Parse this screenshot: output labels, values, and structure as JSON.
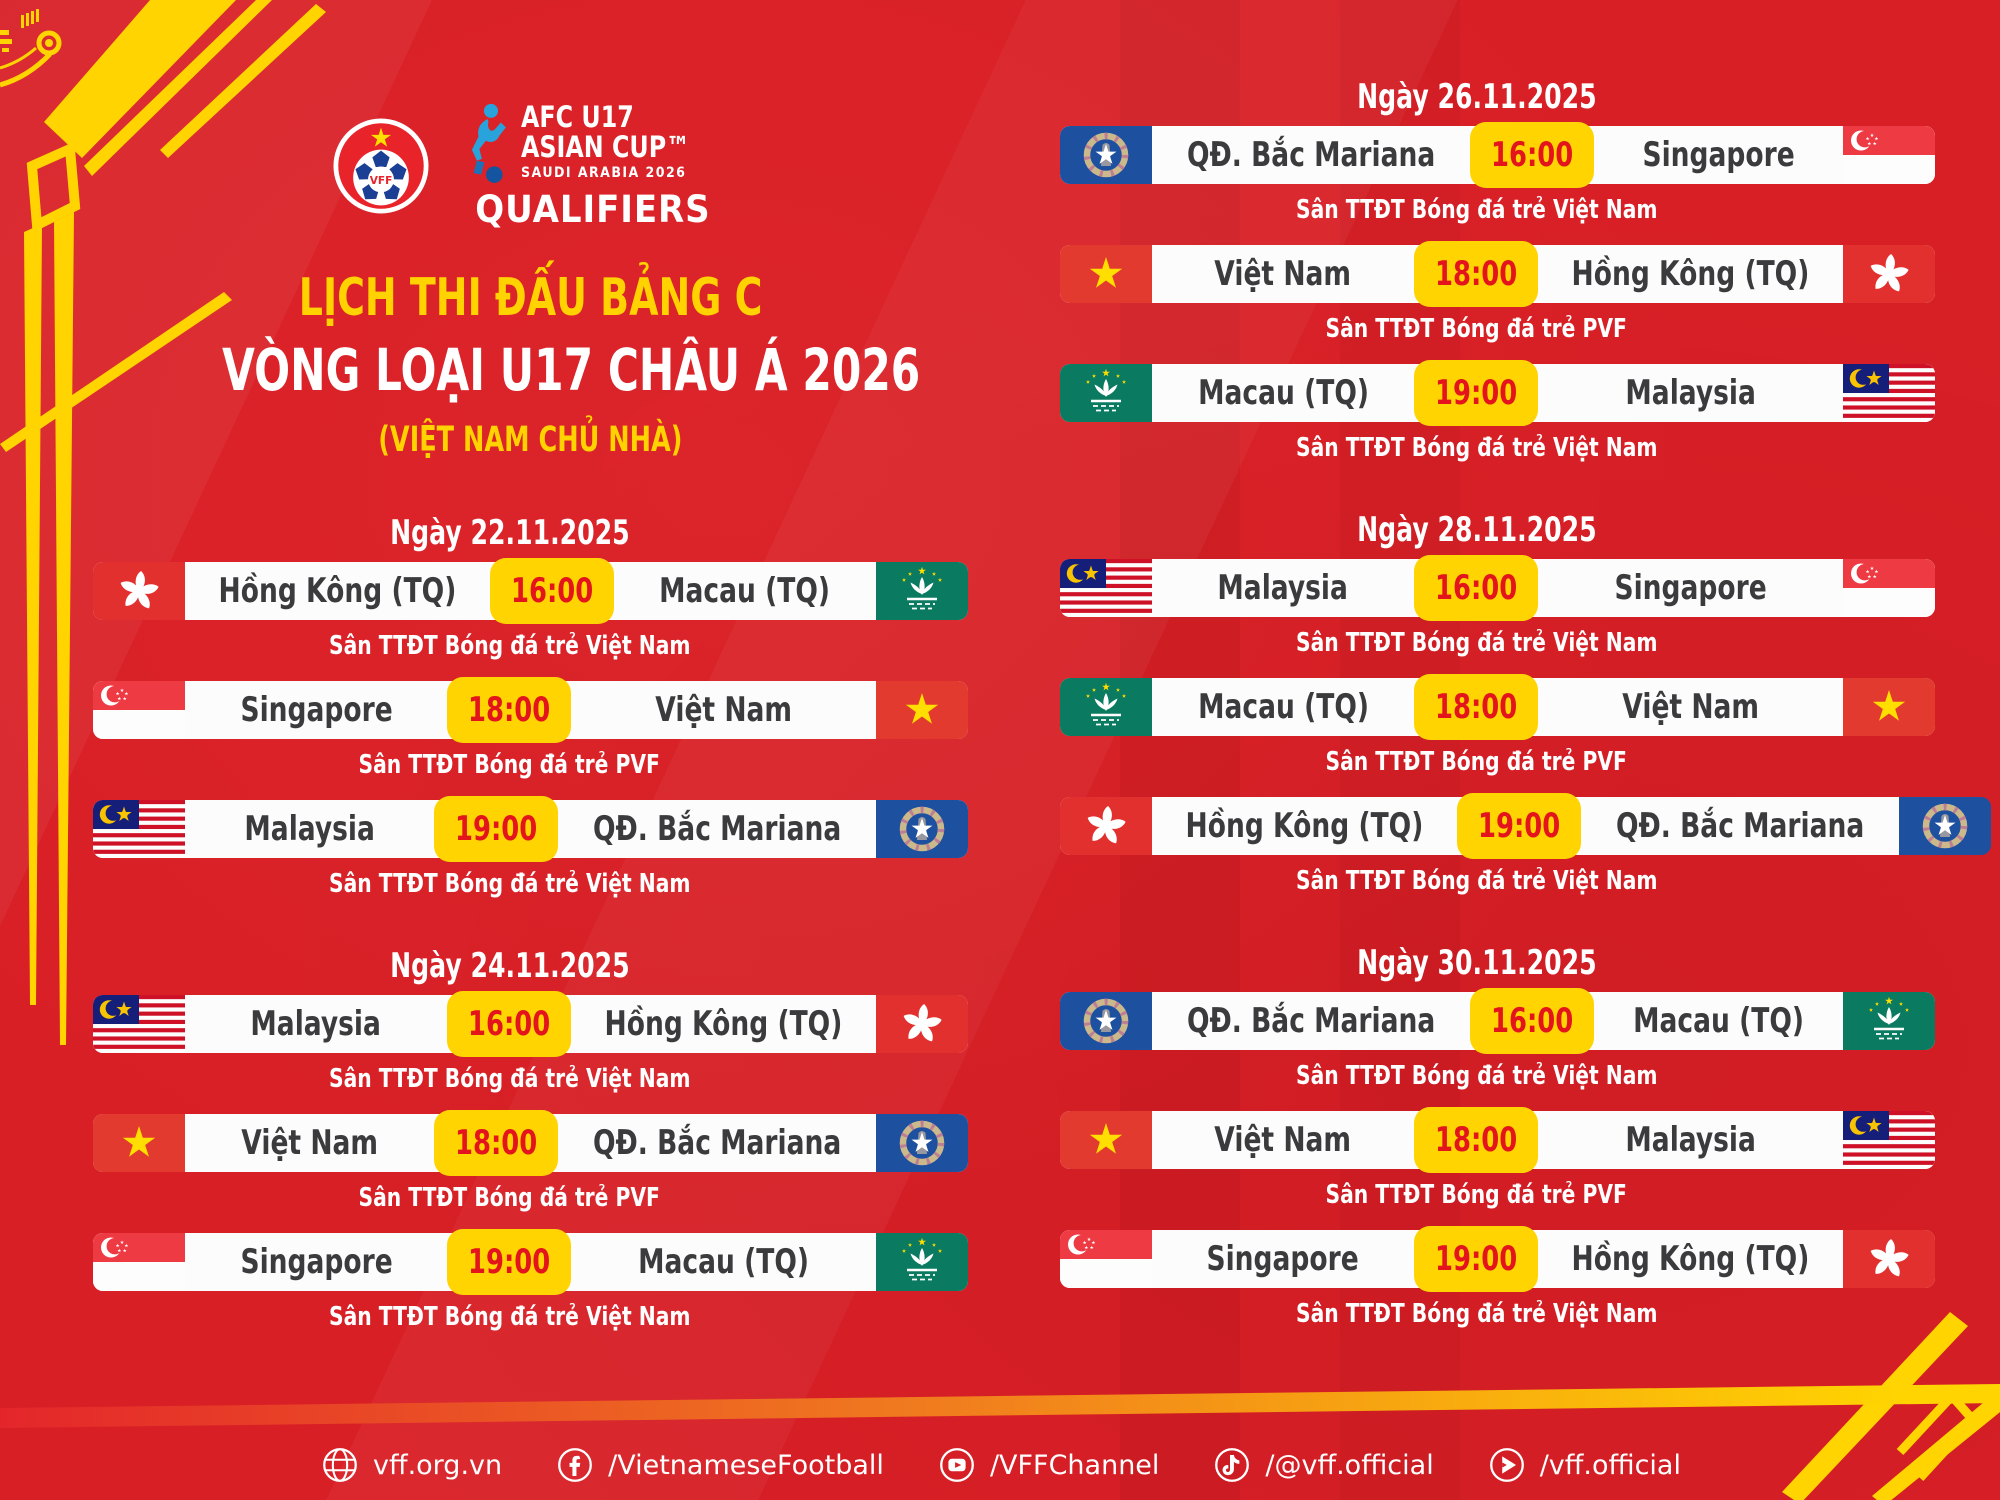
{
  "header": {
    "vff_logo_text": "VFF",
    "afc_logo": {
      "line1": "AFC U17",
      "line2": "ASIAN CUP™",
      "line3": "SAUDI ARABIA 2026",
      "line4": "QUALIFIERS"
    },
    "title": {
      "line1": "LỊCH THI ĐẤU BẢNG C",
      "line2": "VÒNG LOẠI U17 CHÂU Á 2026",
      "line3": "(VIỆT NAM CHỦ NHÀ)"
    }
  },
  "colors": {
    "background_red": "#D81F26",
    "accent_yellow": "#FFD401",
    "title_yellow": "#FFD200",
    "time_red": "#E3141C",
    "team_text": "#3B3B3D",
    "white": "#FFFFFF"
  },
  "schedule": [
    {
      "date": "Ngày 22.11.2025",
      "column": "left",
      "matches": [
        {
          "home": "Hồng Kông (TQ)",
          "home_flag": "hongkong",
          "time": "16:00",
          "away": "Macau (TQ)",
          "away_flag": "macau",
          "venue": "Sân TTĐT Bóng đá trẻ Việt Nam"
        },
        {
          "home": "Singapore",
          "home_flag": "singapore",
          "time": "18:00",
          "away": "Việt Nam",
          "away_flag": "vietnam",
          "venue": "Sân TTĐT Bóng đá trẻ PVF"
        },
        {
          "home": "Malaysia",
          "home_flag": "malaysia",
          "time": "19:00",
          "away": "QĐ. Bắc Mariana",
          "away_flag": "nmariana",
          "venue": "Sân TTĐT Bóng đá trẻ Việt Nam"
        }
      ]
    },
    {
      "date": "Ngày 24.11.2025",
      "column": "left",
      "matches": [
        {
          "home": "Malaysia",
          "home_flag": "malaysia",
          "time": "16:00",
          "away": "Hồng Kông (TQ)",
          "away_flag": "hongkong",
          "venue": "Sân TTĐT Bóng đá trẻ Việt Nam"
        },
        {
          "home": "Việt Nam",
          "home_flag": "vietnam",
          "time": "18:00",
          "away": "QĐ. Bắc Mariana",
          "away_flag": "nmariana",
          "venue": "Sân TTĐT Bóng đá trẻ PVF"
        },
        {
          "home": "Singapore",
          "home_flag": "singapore",
          "time": "19:00",
          "away": "Macau (TQ)",
          "away_flag": "macau",
          "venue": "Sân TTĐT Bóng đá trẻ Việt Nam"
        }
      ]
    },
    {
      "date": "Ngày 26.11.2025",
      "column": "right",
      "matches": [
        {
          "home": "QĐ. Bắc Mariana",
          "home_flag": "nmariana",
          "time": "16:00",
          "away": "Singapore",
          "away_flag": "singapore",
          "venue": "Sân TTĐT Bóng đá trẻ Việt Nam"
        },
        {
          "home": "Việt Nam",
          "home_flag": "vietnam",
          "time": "18:00",
          "away": "Hồng Kông (TQ)",
          "away_flag": "hongkong",
          "venue": "Sân TTĐT Bóng đá trẻ PVF"
        },
        {
          "home": "Macau (TQ)",
          "home_flag": "macau",
          "time": "19:00",
          "away": "Malaysia",
          "away_flag": "malaysia",
          "venue": "Sân TTĐT Bóng đá trẻ Việt Nam"
        }
      ]
    },
    {
      "date": "Ngày 28.11.2025",
      "column": "right",
      "matches": [
        {
          "home": "Malaysia",
          "home_flag": "malaysia",
          "time": "16:00",
          "away": "Singapore",
          "away_flag": "singapore",
          "venue": "Sân TTĐT Bóng đá trẻ Việt Nam"
        },
        {
          "home": "Macau (TQ)",
          "home_flag": "macau",
          "time": "18:00",
          "away": "Việt Nam",
          "away_flag": "vietnam",
          "venue": "Sân TTĐT Bóng đá trẻ PVF"
        },
        {
          "home": "Hồng Kông (TQ)",
          "home_flag": "hongkong",
          "time": "19:00",
          "away": "QĐ. Bắc Mariana",
          "away_flag": "nmariana",
          "venue": "Sân TTĐT Bóng đá trẻ Việt Nam"
        }
      ]
    },
    {
      "date": "Ngày 30.11.2025",
      "column": "right",
      "matches": [
        {
          "home": "QĐ. Bắc Mariana",
          "home_flag": "nmariana",
          "time": "16:00",
          "away": "Macau (TQ)",
          "away_flag": "macau",
          "venue": "Sân TTĐT Bóng đá trẻ Việt Nam"
        },
        {
          "home": "Việt Nam",
          "home_flag": "vietnam",
          "time": "18:00",
          "away": "Malaysia",
          "away_flag": "malaysia",
          "venue": "Sân TTĐT Bóng đá trẻ PVF"
        },
        {
          "home": "Singapore",
          "home_flag": "singapore",
          "time": "19:00",
          "away": "Hồng Kông (TQ)",
          "away_flag": "hongkong",
          "venue": "Sân TTĐT Bóng đá trẻ Việt Nam"
        }
      ]
    }
  ],
  "footer": {
    "links": [
      {
        "icon": "globe-icon",
        "label": "vff.org.vn"
      },
      {
        "icon": "facebook-icon",
        "label": "/VietnameseFootball"
      },
      {
        "icon": "youtube-icon",
        "label": "/VFFChannel"
      },
      {
        "icon": "tiktok-icon",
        "label": "/@vff.official"
      },
      {
        "icon": "play-icon",
        "label": "/vff.official"
      }
    ]
  }
}
